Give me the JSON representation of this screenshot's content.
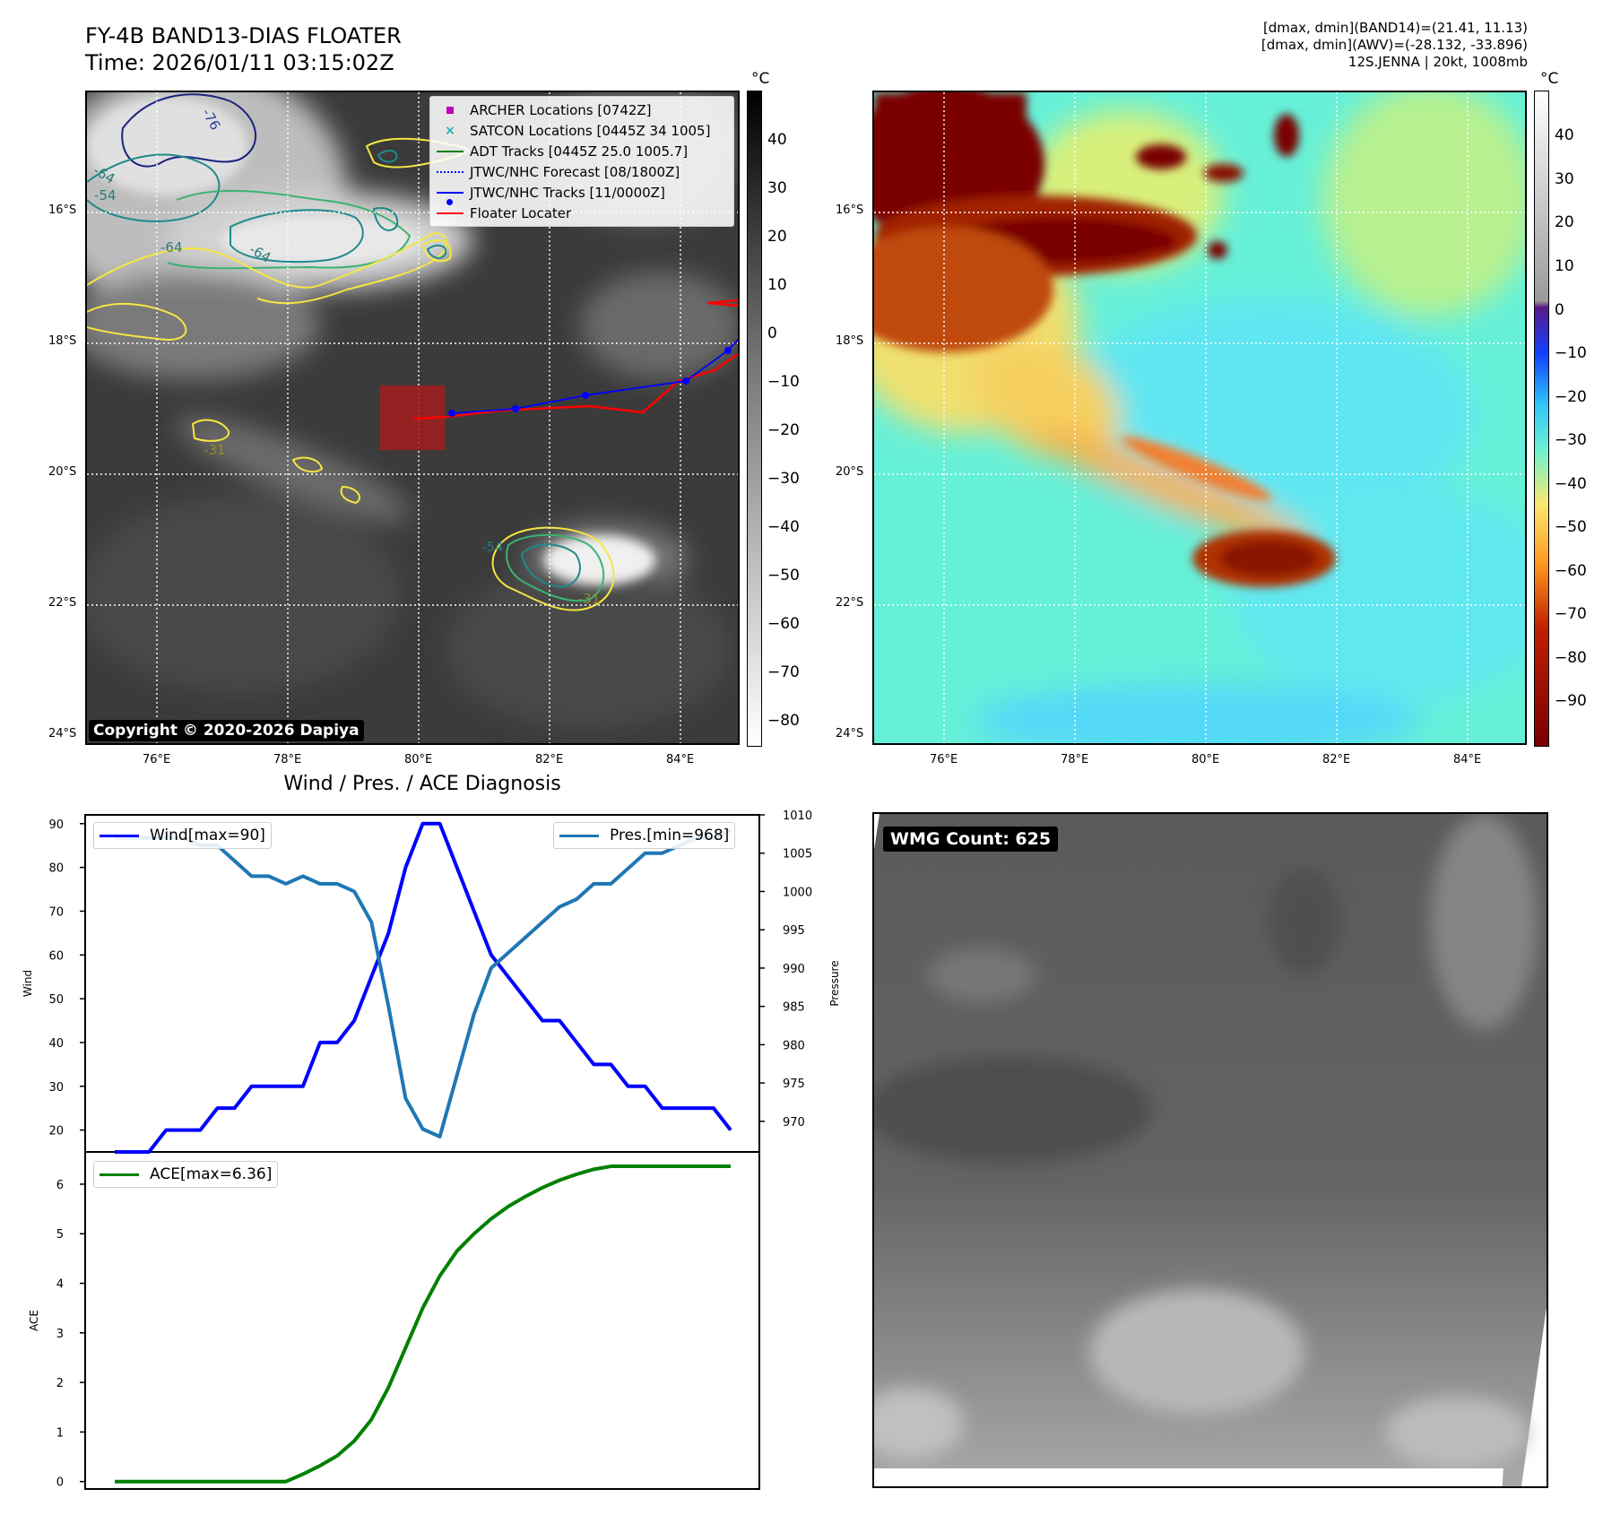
{
  "header": {
    "title_line1": "FY-4B BAND13-DIAS FLOATER",
    "title_line2": "Time: 2026/01/11 03:15:02Z",
    "info_line1": "[dmax, dmin](BAND14)=(21.41, 11.13)",
    "info_line2": "[dmax, dmin](AWV)=(-28.132, -33.896)",
    "info_line3": "12S.JENNA | 20kt, 1008mb"
  },
  "map": {
    "lat_labels": [
      "16°S",
      "18°S",
      "20°S",
      "22°S",
      "24°S"
    ],
    "lon_labels": [
      "76°E",
      "78°E",
      "80°E",
      "82°E",
      "84°E"
    ],
    "contour_labels": [
      "-76",
      "-64",
      "-54",
      "-64",
      "-64",
      "-31",
      "-54",
      "-31"
    ],
    "copyright": "Copyright © 2020-2026 Dapiya",
    "legend": [
      {
        "label": "ARCHER Locations [0742Z]",
        "color": "#c000c0"
      },
      {
        "label": "SATCON Locations [0445Z 34 1005]",
        "color": "#20b0b0"
      },
      {
        "label": "ADT Tracks [0445Z 25.0 1005.7]",
        "color": "#008000"
      },
      {
        "label": "JTWC/NHC Forecast [08/1800Z]",
        "color": "#0000ff"
      },
      {
        "label": "JTWC/NHC Tracks [11/0000Z]",
        "color": "#0000ff"
      },
      {
        "label": "Floater Locater",
        "color": "#ff0000"
      }
    ],
    "colorbar_unit": "°C",
    "gray_colorbar_ticks": [
      "40",
      "30",
      "20",
      "10",
      "0",
      "−10",
      "−20",
      "−30",
      "−40",
      "−50",
      "−60",
      "−70",
      "−80"
    ],
    "color_colorbar_ticks": [
      "40",
      "30",
      "20",
      "10",
      "0",
      "−10",
      "−20",
      "−30",
      "−40",
      "−50",
      "−60",
      "−70",
      "−80",
      "−90"
    ]
  },
  "wmg": {
    "label": "WMG Count: 625"
  },
  "chart_data": [
    {
      "type": "line",
      "title": "Wind / Pres. / ACE Diagnosis",
      "xlabel": "",
      "ylabel": "Wind",
      "ylabel_right": "Pressure",
      "ylim": [
        15,
        92
      ],
      "ylim_right": [
        966,
        1010
      ],
      "yticks": [
        20,
        30,
        40,
        50,
        60,
        70,
        80,
        90
      ],
      "yticks_right": [
        970,
        975,
        980,
        985,
        990,
        995,
        1000,
        1005,
        1010
      ],
      "x": [
        0,
        1,
        2,
        3,
        4,
        5,
        6,
        7,
        8,
        9,
        10,
        11,
        12,
        13,
        14,
        15,
        16,
        17,
        18,
        19,
        20,
        21,
        22,
        23,
        24,
        25,
        26,
        27,
        28,
        29,
        30,
        31,
        32,
        33,
        34,
        35,
        36
      ],
      "series": [
        {
          "name": "Wind[max=90]",
          "axis": "left",
          "color": "#0000ff",
          "values": [
            15,
            15,
            15,
            20,
            20,
            20,
            25,
            25,
            30,
            30,
            30,
            30,
            40,
            40,
            45,
            55,
            65,
            80,
            90,
            90,
            80,
            70,
            60,
            55,
            50,
            45,
            45,
            40,
            35,
            35,
            30,
            30,
            25,
            25,
            25,
            25,
            20
          ]
        },
        {
          "name": "Pres.[min=968]",
          "axis": "right",
          "color": "#1f77b4",
          "values": [
            1007,
            1007,
            1007,
            1007,
            1007,
            1006,
            1006,
            1004,
            1002,
            1002,
            1001,
            1002,
            1001,
            1001,
            1000,
            996,
            985,
            973,
            969,
            968,
            976,
            984,
            990,
            992,
            994,
            996,
            998,
            999,
            1001,
            1001,
            1003,
            1005,
            1005,
            1006,
            1007,
            1007,
            1008
          ]
        }
      ]
    },
    {
      "type": "line",
      "xlabel": "",
      "ylabel": "ACE",
      "ylim": [
        -0.15,
        6.65
      ],
      "yticks": [
        0,
        1,
        2,
        3,
        4,
        5,
        6
      ],
      "x": [
        0,
        1,
        2,
        3,
        4,
        5,
        6,
        7,
        8,
        9,
        10,
        11,
        12,
        13,
        14,
        15,
        16,
        17,
        18,
        19,
        20,
        21,
        22,
        23,
        24,
        25,
        26,
        27,
        28,
        29,
        30,
        31,
        32,
        33,
        34,
        35,
        36
      ],
      "series": [
        {
          "name": "ACE[max=6.36]",
          "color": "#008000",
          "values": [
            0,
            0,
            0,
            0,
            0,
            0,
            0,
            0,
            0,
            0,
            0,
            0.15,
            0.32,
            0.52,
            0.82,
            1.25,
            1.9,
            2.7,
            3.5,
            4.15,
            4.65,
            5.0,
            5.3,
            5.55,
            5.75,
            5.93,
            6.08,
            6.2,
            6.3,
            6.36,
            6.36,
            6.36,
            6.36,
            6.36,
            6.36,
            6.36,
            6.36
          ]
        }
      ]
    }
  ]
}
